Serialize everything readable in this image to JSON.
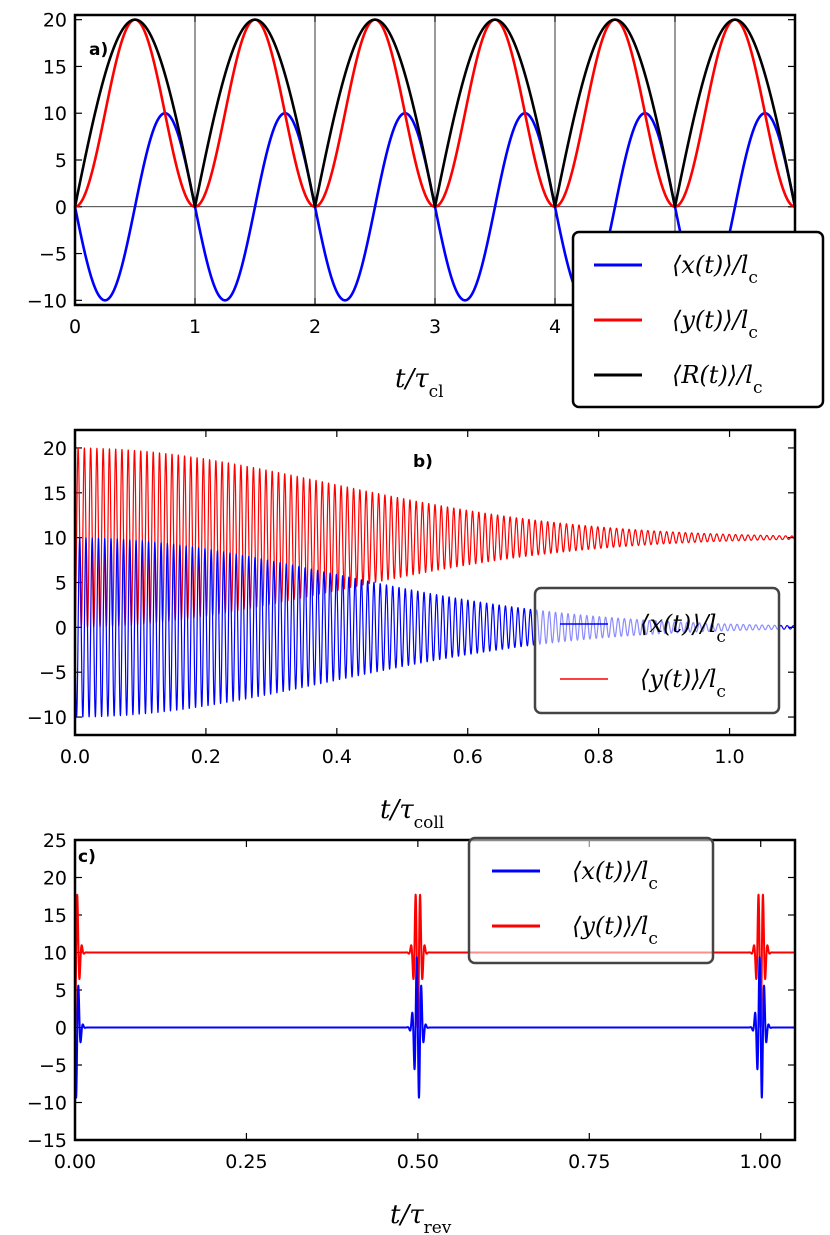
{
  "chart_data": [
    {
      "panel": "a)",
      "type": "line",
      "xlabel": "t/τcl",
      "xlim": [
        0,
        6
      ],
      "ylim": [
        -10.5,
        20.5
      ],
      "x_ticks": [
        "0",
        "1",
        "2",
        "3",
        "4",
        "5",
        "6"
      ],
      "y_ticks": [
        "−10",
        "−5",
        "0",
        "5",
        "10",
        "15",
        "20"
      ],
      "x_tick_values": [
        0,
        1,
        2,
        3,
        4,
        5,
        6
      ],
      "y_tick_values": [
        -10,
        -5,
        0,
        5,
        10,
        15,
        20
      ],
      "grid": "vertical lines at integers, horizontal line at 0",
      "legend_position": "lower-right",
      "series": [
        {
          "name": "⟨x(t)⟩/lc",
          "color": "#0000ff",
          "formula": "10·sin(2πt)·(−1)… peak 10, trough −10",
          "x": [
            0,
            0.25,
            0.5,
            0.75,
            1
          ],
          "values": [
            0,
            -10,
            0,
            10,
            0
          ]
        },
        {
          "name": "⟨y(t)⟩/lc",
          "color": "#ff0000",
          "x": [
            0,
            0.25,
            0.5,
            0.75,
            1
          ],
          "values": [
            0,
            10,
            20,
            10,
            0
          ]
        },
        {
          "name": "⟨R(t)⟩/lc",
          "color": "#000000",
          "x": [
            0,
            0.25,
            0.5,
            0.75,
            1
          ],
          "values": [
            0,
            14.1,
            20,
            14.1,
            0
          ]
        }
      ]
    },
    {
      "panel": "b)",
      "type": "line",
      "xlabel": "t/τcoll",
      "xlim": [
        0,
        1.1
      ],
      "ylim": [
        -12,
        22
      ],
      "x_ticks": [
        "0.0",
        "0.2",
        "0.4",
        "0.6",
        "0.8",
        "1.0"
      ],
      "y_ticks": [
        "−10",
        "−5",
        "0",
        "5",
        "10",
        "15",
        "20"
      ],
      "x_tick_values": [
        0,
        0.2,
        0.4,
        0.6,
        0.8,
        1.0
      ],
      "y_tick_values": [
        -10,
        -5,
        0,
        5,
        10,
        15,
        20
      ],
      "legend_position": "right",
      "series": [
        {
          "name": "⟨x(t)⟩/lc",
          "color": "#0000ff",
          "center": 0,
          "amplitude_start": 10,
          "amplitude_end": 0
        },
        {
          "name": "⟨y(t)⟩/lc",
          "color": "#ff0000",
          "center": 10,
          "amplitude_start": 10,
          "amplitude_end": 0
        }
      ]
    },
    {
      "panel": "c)",
      "type": "line",
      "xlabel": "t/τrev",
      "xlim": [
        0,
        1.05
      ],
      "ylim": [
        -15,
        25
      ],
      "x_ticks": [
        "0.00",
        "0.25",
        "0.50",
        "0.75",
        "1.00"
      ],
      "y_ticks": [
        "−15",
        "−10",
        "−5",
        "0",
        "5",
        "10",
        "15",
        "20",
        "25"
      ],
      "x_tick_values": [
        0,
        0.25,
        0.5,
        0.75,
        1.0
      ],
      "y_tick_values": [
        -15,
        -10,
        -5,
        0,
        5,
        10,
        15,
        20,
        25
      ],
      "legend_position": "upper-right",
      "revivals_at": [
        0,
        0.5,
        1.0
      ],
      "series": [
        {
          "name": "⟨x(t)⟩/lc",
          "color": "#0000ff",
          "baseline": 0,
          "revival_amplitude": 10
        },
        {
          "name": "⟨y(t)⟩/lc",
          "color": "#ff0000",
          "baseline": 10,
          "revival_amplitude": 10
        }
      ]
    }
  ]
}
